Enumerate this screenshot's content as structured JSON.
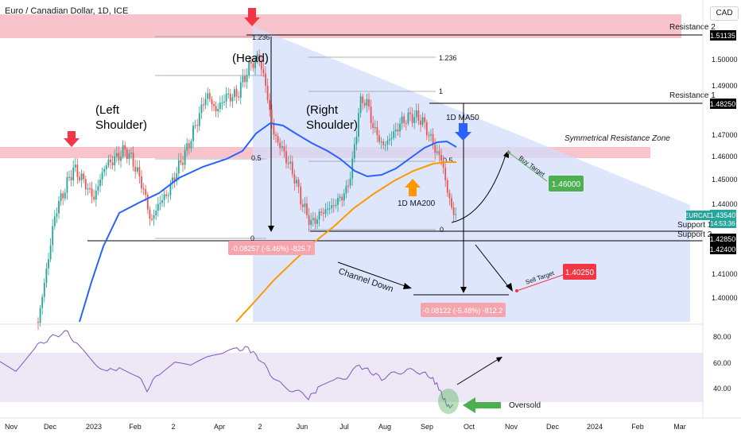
{
  "header": {
    "symbol_title": "Euro / Canadian Dollar, 1D, ICE",
    "currency": "CAD"
  },
  "price_axis": {
    "ticks": [
      "1.51135",
      "1.50000",
      "1.49000",
      "1.48250",
      "1.47000",
      "1.46000",
      "1.45000",
      "1.44000",
      "1.43540",
      "1.42850",
      "1.42400",
      "1.41000",
      "1.40000"
    ],
    "symbol_tag": "EURCAD",
    "current_price": "1.43540",
    "countdown": "14:53:36",
    "resistance2_tag": "1.51135",
    "resistance1_tag": "1.48250",
    "support2_tag": "1.42850",
    "support1_tag": "1.42400"
  },
  "rsi_axis": {
    "ticks": [
      "80.00",
      "60.00",
      "40.00"
    ]
  },
  "time_axis": {
    "labels": [
      "Nov",
      "Dec",
      "2023",
      "Feb",
      "2",
      "Apr",
      "2",
      "Jun",
      "Jul",
      "Aug",
      "Sep",
      "Oct",
      "Nov",
      "Dec",
      "2024",
      "Feb",
      "Mar"
    ]
  },
  "annotations": {
    "resistance2": "Resistance 2",
    "resistance1": "Resistance 1",
    "support1": "Support 1",
    "support2": "Support 2",
    "symmetrical_zone": "Symmetrical Resistance Zone",
    "head": "(Head)",
    "left_shoulder_1": "(Left",
    "left_shoulder_2": "Shoulder)",
    "right_shoulder_1": "(Right",
    "right_shoulder_2": "Shoulder)",
    "ma50": "1D MA50",
    "ma200": "1D MA200",
    "channel_down": "Channel Down",
    "buy_target": "Buy Target",
    "buy_price": "1.46000",
    "sell_target": "Sell Target",
    "sell_price": "1.40250",
    "oversold": "Oversold",
    "measure_left": "-0.08257 (-5.46%) -825.7",
    "measure_right": "-0.08122 (-5.48%) -812.2",
    "fib_left_top": "1.236",
    "fib_left_mid": "0.5",
    "fib_left_zero": "0",
    "fib_right_ext": "1.236",
    "fib_right_one": "1",
    "fib_right_mid": "0.5",
    "fib_right_zero": "0"
  },
  "colors": {
    "up_candle": "#26a69a",
    "down_candle": "#ef5350",
    "ma50": "#2962ff",
    "ma200": "#ff9800",
    "resistance_zone": "#f7b9c1",
    "channel": "#d3defb",
    "rsi_line": "#7e57c2",
    "buy_box": "#4caf50",
    "sell_box": "#f23645"
  },
  "icons": [
    "arrow-down-red-icon",
    "arrow-down-blue-icon",
    "arrow-up-orange-icon",
    "arrow-left-green-icon"
  ]
}
